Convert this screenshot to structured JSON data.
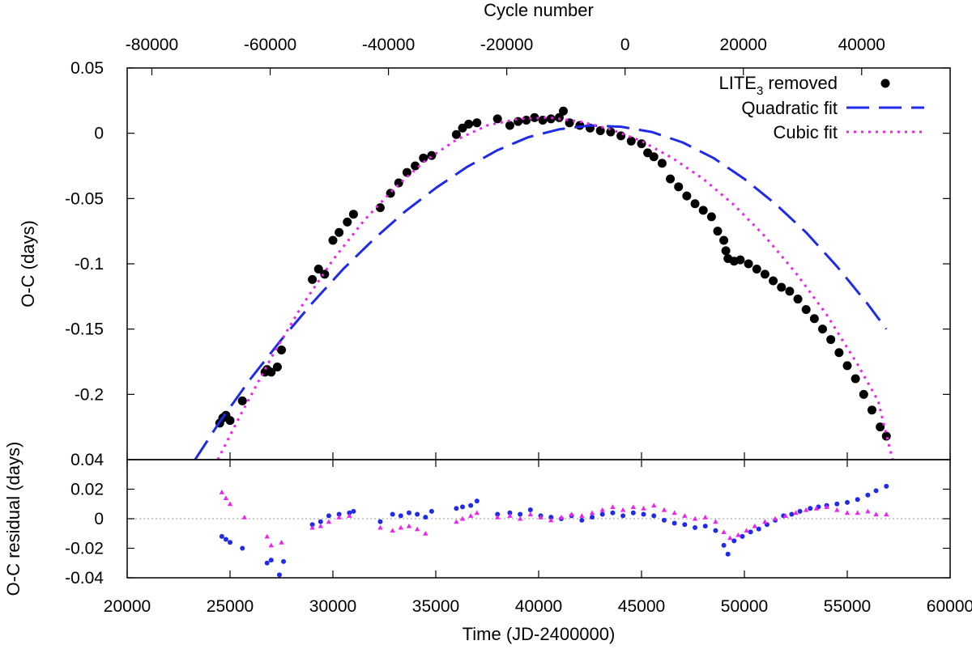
{
  "chart_data": [
    {
      "panel": "main",
      "type": "scatter",
      "ylabel": "O-C (days)",
      "x2label": "Cycle number",
      "xlim": [
        20000,
        60000
      ],
      "ylim": [
        -0.25,
        0.05
      ],
      "x_ticks": [
        20000,
        25000,
        30000,
        35000,
        40000,
        45000,
        50000,
        55000,
        60000
      ],
      "y_ticks": [
        0.05,
        0,
        -0.05,
        -0.1,
        -0.15,
        -0.2
      ],
      "y_tick_labels": [
        "0.05",
        "0",
        "-0.05",
        "-0.1",
        "-0.15",
        "-0.2"
      ],
      "x2_ticks": [
        -80000,
        -60000,
        -40000,
        -20000,
        0,
        20000,
        40000
      ],
      "x2_tick_labels": [
        "-80000",
        "-60000",
        "-40000",
        "-20000",
        "0",
        "20000",
        "40000"
      ],
      "cycle_mapping": {
        "jd_at_cycle_zero": 44200,
        "days_per_cycle": 0.2875
      },
      "legend_position": "top-right",
      "grid": false,
      "series": [
        {
          "name": "LITE3 removed",
          "name_main": "LITE",
          "name_sub": "3",
          "name_suffix": " removed",
          "style": "filled-circle",
          "color": "#000000",
          "x": [
            24500,
            24650,
            24800,
            25000,
            25600,
            26700,
            26800,
            27000,
            27300,
            27500,
            29000,
            29300,
            29600,
            30000,
            30300,
            30700,
            31000,
            32300,
            32800,
            33200,
            33600,
            34000,
            34400,
            34800,
            36000,
            36300,
            36600,
            37000,
            38000,
            38600,
            39000,
            39400,
            39800,
            40200,
            40600,
            41000,
            41200,
            41500,
            42000,
            42500,
            43000,
            43500,
            44000,
            44500,
            45000,
            45300,
            45600,
            46000,
            46400,
            46800,
            47200,
            47600,
            48000,
            48400,
            48700,
            49000,
            49100,
            49200,
            49500,
            49800,
            50200,
            50600,
            51000,
            51400,
            51800,
            52200,
            52600,
            53000,
            53400,
            53800,
            54200,
            54600,
            55000,
            55400,
            55800,
            56200,
            56600,
            56900
          ],
          "y": [
            -0.222,
            -0.218,
            -0.216,
            -0.22,
            -0.205,
            -0.183,
            -0.181,
            -0.183,
            -0.179,
            -0.166,
            -0.112,
            -0.104,
            -0.108,
            -0.082,
            -0.076,
            -0.068,
            -0.062,
            -0.057,
            -0.046,
            -0.038,
            -0.03,
            -0.025,
            -0.019,
            -0.017,
            -0.001,
            0.004,
            0.007,
            0.008,
            0.011,
            0.006,
            0.009,
            0.01,
            0.012,
            0.01,
            0.011,
            0.012,
            0.017,
            0.008,
            0.006,
            0.004,
            0.002,
            0.001,
            -0.002,
            -0.006,
            -0.008,
            -0.015,
            -0.018,
            -0.023,
            -0.035,
            -0.041,
            -0.048,
            -0.054,
            -0.059,
            -0.064,
            -0.075,
            -0.082,
            -0.09,
            -0.096,
            -0.098,
            -0.097,
            -0.1,
            -0.104,
            -0.108,
            -0.113,
            -0.118,
            -0.121,
            -0.127,
            -0.135,
            -0.142,
            -0.15,
            -0.158,
            -0.168,
            -0.178,
            -0.188,
            -0.2,
            -0.212,
            -0.225,
            -0.232
          ]
        },
        {
          "name": "Quadratic fit",
          "style": "long-dash",
          "color": "#1f2be8",
          "x": [
            23300,
            24500,
            26000,
            27500,
            29000,
            30500,
            32000,
            33500,
            35000,
            36500,
            38000,
            39500,
            41000,
            42500,
            44000,
            45500,
            47000,
            48500,
            50000,
            51500,
            53000,
            54500,
            56000,
            56900
          ],
          "y": [
            -0.25,
            -0.221,
            -0.188,
            -0.158,
            -0.13,
            -0.104,
            -0.081,
            -0.06,
            -0.042,
            -0.026,
            -0.013,
            -0.003,
            0.003,
            0.006,
            0.005,
            0.001,
            -0.007,
            -0.019,
            -0.035,
            -0.054,
            -0.076,
            -0.102,
            -0.131,
            -0.15
          ],
          "note_domain_end": "clipped at lower axis limit"
        },
        {
          "name": "Cubic fit",
          "style": "dotted",
          "color": "#ee22ee",
          "x": [
            24400,
            25500,
            27000,
            28500,
            30000,
            31500,
            33000,
            34500,
            36000,
            37500,
            39000,
            40500,
            42000,
            43500,
            45000,
            46500,
            48000,
            49500,
            51000,
            52500,
            54000,
            55500,
            56500,
            57200
          ],
          "y": [
            -0.25,
            -0.216,
            -0.172,
            -0.132,
            -0.097,
            -0.067,
            -0.042,
            -0.021,
            -0.005,
            0.006,
            0.011,
            0.012,
            0.009,
            0.003,
            -0.006,
            -0.019,
            -0.035,
            -0.055,
            -0.079,
            -0.107,
            -0.139,
            -0.177,
            -0.205,
            -0.25
          ]
        }
      ]
    },
    {
      "panel": "residual",
      "type": "scatter",
      "xlabel": "Time (JD-2400000)",
      "ylabel": "O-C residual (days)",
      "xlim": [
        20000,
        60000
      ],
      "ylim": [
        -0.04,
        0.04
      ],
      "x_ticks": [
        20000,
        25000,
        30000,
        35000,
        40000,
        45000,
        50000,
        55000,
        60000
      ],
      "x_tick_labels": [
        "20000",
        "25000",
        "30000",
        "35000",
        "40000",
        "45000",
        "50000",
        "55000",
        "60000"
      ],
      "y_ticks": [
        0.04,
        0.02,
        0,
        -0.02,
        -0.04
      ],
      "y_tick_labels": [
        "0.04",
        "0.02",
        "0",
        "-0.02",
        "-0.04"
      ],
      "zero_line": true,
      "series": [
        {
          "style": "dot",
          "color": "#1f2be8",
          "x": [
            24600,
            24800,
            25000,
            25600,
            26800,
            27000,
            27400,
            27600,
            29000,
            29400,
            29800,
            30300,
            30800,
            31000,
            32300,
            32900,
            33300,
            33700,
            34100,
            34500,
            34800,
            36000,
            36300,
            36700,
            37000,
            38000,
            38600,
            39100,
            39600,
            40100,
            40600,
            41100,
            41600,
            42100,
            42600,
            43100,
            43600,
            44100,
            44600,
            45100,
            45600,
            46100,
            46600,
            47100,
            47600,
            48100,
            48600,
            49000,
            49200,
            49500,
            49900,
            50300,
            50700,
            51100,
            51500,
            51900,
            52300,
            52700,
            53200,
            53600,
            54000,
            54500,
            55000,
            55500,
            56000,
            56400,
            56900
          ],
          "y": [
            -0.012,
            -0.014,
            -0.016,
            -0.02,
            -0.03,
            -0.028,
            -0.038,
            -0.029,
            -0.004,
            -0.002,
            0.002,
            0.003,
            0.004,
            0.005,
            -0.002,
            0.003,
            0.002,
            0.004,
            0.003,
            0.001,
            0.005,
            0.007,
            0.008,
            0.009,
            0.012,
            0.003,
            0.004,
            0.003,
            0.006,
            0.002,
            0.001,
            0.0,
            0.002,
            -0.001,
            0.001,
            0.003,
            0.004,
            0.002,
            0.004,
            0.003,
            0.002,
            -0.001,
            -0.003,
            -0.004,
            -0.006,
            -0.005,
            -0.008,
            -0.018,
            -0.024,
            -0.015,
            -0.012,
            -0.009,
            -0.007,
            -0.004,
            -0.001,
            0.002,
            0.003,
            0.005,
            0.007,
            0.008,
            0.009,
            0.01,
            0.011,
            0.013,
            0.016,
            0.019,
            0.022
          ]
        },
        {
          "style": "triangle",
          "color": "#ee22ee",
          "x": [
            24600,
            24800,
            25000,
            25700,
            26800,
            27000,
            27500,
            29000,
            29400,
            29800,
            30300,
            30800,
            32300,
            32900,
            33300,
            33700,
            34100,
            34500,
            36000,
            36300,
            36700,
            37000,
            38000,
            38600,
            39100,
            39600,
            40100,
            40600,
            41100,
            41600,
            42100,
            42600,
            43100,
            43600,
            44100,
            44600,
            45100,
            45600,
            46100,
            46600,
            47100,
            47600,
            48100,
            48600,
            49000,
            49300,
            49700,
            50100,
            50500,
            51000,
            51500,
            52000,
            52500,
            53000,
            53500,
            54000,
            54500,
            55000,
            55500,
            56000,
            56400,
            56900
          ],
          "y": [
            0.018,
            0.014,
            0.01,
            0.001,
            -0.012,
            -0.018,
            -0.016,
            -0.006,
            -0.005,
            -0.002,
            0.001,
            0.002,
            -0.006,
            -0.008,
            -0.006,
            -0.005,
            -0.007,
            -0.01,
            -0.002,
            0.0,
            0.002,
            0.004,
            0.001,
            0.002,
            0.0,
            0.003,
            0.001,
            -0.001,
            0.001,
            0.003,
            0.002,
            0.004,
            0.006,
            0.008,
            0.006,
            0.008,
            0.007,
            0.009,
            0.006,
            0.004,
            0.002,
            0.0,
            0.001,
            -0.002,
            -0.009,
            -0.013,
            -0.011,
            -0.008,
            -0.005,
            -0.002,
            0.0,
            0.002,
            0.004,
            0.006,
            0.007,
            0.008,
            0.006,
            0.004,
            0.004,
            0.005,
            0.003,
            0.003
          ]
        }
      ]
    }
  ]
}
